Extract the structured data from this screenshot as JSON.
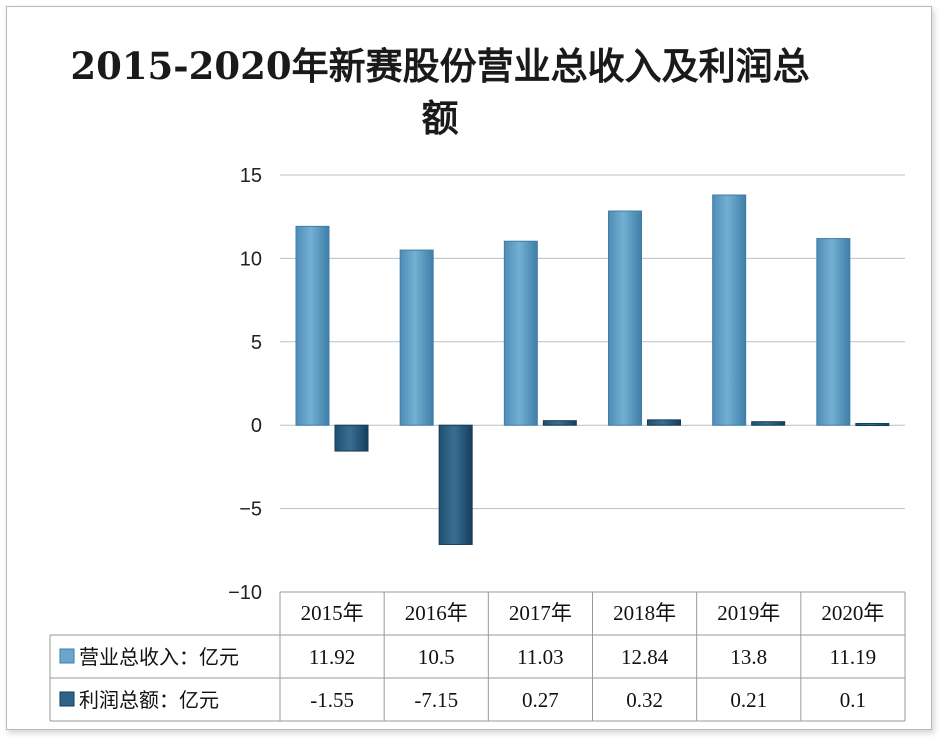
{
  "chart_data": {
    "type": "bar",
    "title": "2015-2020年新赛股份营业总收入及利润总额",
    "categories": [
      "2015年",
      "2016年",
      "2017年",
      "2018年",
      "2019年",
      "2020年"
    ],
    "series": [
      {
        "name": "营业总收入：亿元",
        "values": [
          11.92,
          10.5,
          11.03,
          12.84,
          13.8,
          11.19
        ],
        "color": "#6aa6cc"
      },
      {
        "name": "利润总额：亿元",
        "values": [
          -1.55,
          -7.15,
          0.27,
          0.32,
          0.21,
          0.1
        ],
        "color": "#2f6486"
      }
    ],
    "yticks": [
      "15",
      "10",
      "5",
      "0",
      "−5",
      "−10"
    ],
    "ylim": [
      -10,
      15
    ],
    "grid": true,
    "data_table": true
  },
  "colors": {
    "revenue": "#6aa6cc",
    "revenue_dark": "#3e7ea8",
    "profit": "#2f6486",
    "profit_dark": "#123c58",
    "grid": "#b7c0c8"
  }
}
